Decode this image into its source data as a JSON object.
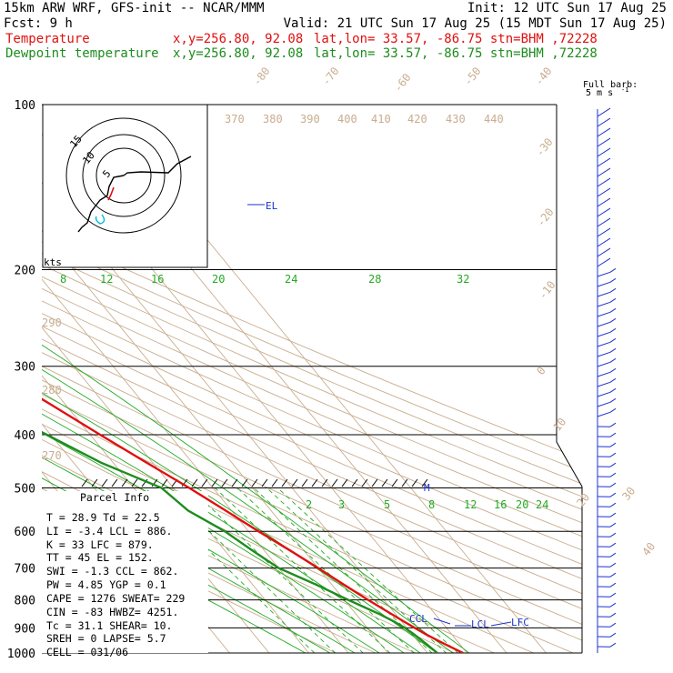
{
  "header": {
    "line1_left": "15km ARW WRF, GFS-init  -- NCAR/MMM",
    "line1_right": "Init: 12 UTC Sun 17 Aug 25",
    "line2_left": "Fcst:     9 h",
    "line2_right": "Valid: 21 UTC Sun 17 Aug 25 (15 MDT Sun 17 Aug 25)",
    "temp_left": "Temperature",
    "temp_mid": "x,y=256.80, 92.08",
    "temp_right": "lat,lon= 33.57, -86.75  stn=BHM ,72228",
    "dew_left": "Dewpoint temperature",
    "dew_mid": "x,y=256.80, 92.08",
    "dew_right": "lat,lon= 33.57, -86.75  stn=BHM ,72228"
  },
  "barb_legend": {
    "line1": "Full barb:",
    "line2": "5 m s",
    "sup": "-1"
  },
  "hodograph": {
    "units": "kts",
    "ring_labels": [
      "5",
      "10",
      "15"
    ]
  },
  "parcel_info": {
    "title": "Parcel Info",
    "rows": [
      "T   =   28.9 Td =  22.5",
      "LI  =   -3.4 LCL =  886.",
      "K   =     33 LFC =  879.",
      "TT  =     45 EL  =  152.",
      "SWI =   -1.3 CCL =  862.",
      "PW  =   4.85 YGP =   0.1",
      "CAPE =  1276 SWEAT=  229",
      "CIN  =   -83 HWBZ= 4251.",
      "Tc  =   31.1 SHEAR=  10.",
      "SREH =     0 LAPSE=  5.7",
      "CELL = 031/06"
    ]
  },
  "level_labels": {
    "el": "EL",
    "ccl": "CCL",
    "lcl": "LCL",
    "lfc": "LFC",
    "m": "M"
  },
  "colors": {
    "temperature": "#e01010",
    "dewpoint": "#1e8c1e",
    "isotherm": "#c9ad8f",
    "mixing_ratio": "#22aa22",
    "wind": "#1a33cc",
    "hodo_low": "#00bcd4"
  },
  "chart_data": {
    "type": "line",
    "chart_kind": "skew-T log-p sounding",
    "y_axis": {
      "scale": "log",
      "units": "hPa",
      "ticks": [
        100,
        200,
        300,
        400,
        500,
        600,
        700,
        800,
        900,
        1000
      ]
    },
    "isotherm_labels": [
      "-80",
      "-70",
      "-60",
      "-50",
      "-40",
      "-30",
      "-20",
      "-10",
      "0",
      "10",
      "20",
      "30",
      "40"
    ],
    "theta_labels": [
      "370",
      "380",
      "390",
      "400",
      "410",
      "420",
      "430",
      "440",
      "290",
      "280",
      "270"
    ],
    "mixing_ratio_labels": [
      "8",
      "12",
      "16",
      "20",
      "24",
      "28",
      "32",
      "2",
      "3",
      "5",
      "8",
      "12",
      "16",
      "20",
      "24"
    ],
    "series": [
      {
        "name": "Temperature",
        "pressure": [
          1000,
          960,
          925,
          900,
          875,
          850,
          800,
          750,
          700,
          650,
          600,
          550,
          500,
          450,
          400,
          350,
          300,
          270,
          250,
          220,
          200,
          180,
          160,
          150,
          140,
          120,
          100
        ],
        "values": [
          29,
          26,
          23.5,
          22,
          20.5,
          19,
          16,
          13,
          10,
          6.5,
          2.5,
          -1.5,
          -6,
          -11.5,
          -17.5,
          -24,
          -32,
          -37.5,
          -42,
          -48,
          -53,
          -59,
          -65,
          -68,
          -68,
          -66,
          -68
        ]
      },
      {
        "name": "Dewpoint temperature",
        "pressure": [
          1000,
          960,
          925,
          900,
          875,
          850,
          800,
          750,
          700,
          650,
          600,
          550,
          500,
          450,
          400,
          350,
          300,
          270,
          250,
          220,
          200,
          180,
          160,
          150,
          140,
          120,
          100
        ],
        "values": [
          22.5,
          21.5,
          20.5,
          19.5,
          18,
          16,
          11,
          6,
          0,
          -3,
          -6,
          -11,
          -13,
          -23,
          -31,
          -40,
          -46,
          -52,
          -56,
          -63,
          -70,
          -77,
          -83,
          -84,
          -84,
          -85,
          -87
        ]
      }
    ]
  }
}
